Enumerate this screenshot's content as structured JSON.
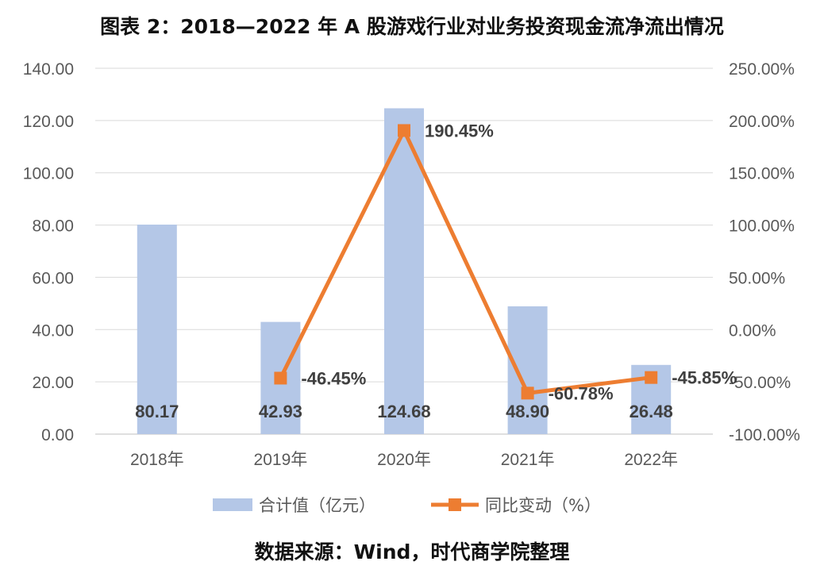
{
  "title": "图表 2：2018—2022 年 A 股游戏行业对业务投资现金流净流出情况",
  "source": "数据来源：Wind，时代商学院整理",
  "chart_data": {
    "type": "bar",
    "categories": [
      "2018年",
      "2019年",
      "2020年",
      "2021年",
      "2022年"
    ],
    "series": [
      {
        "name": "合计值（亿元）",
        "type": "bar",
        "axis": "left",
        "color": "#b4c7e7",
        "values": [
          80.17,
          42.93,
          124.68,
          48.9,
          26.48
        ],
        "labels": [
          "80.17",
          "42.93",
          "124.68",
          "48.90",
          "26.48"
        ]
      },
      {
        "name": "同比变动（%）",
        "type": "line",
        "axis": "right",
        "color": "#ed7d31",
        "values": [
          null,
          -46.45,
          190.45,
          -60.78,
          -45.85
        ],
        "labels": [
          "",
          "-46.45%",
          "190.45%",
          "-60.78%",
          "-45.85%"
        ]
      }
    ],
    "y_left": {
      "range": [
        0,
        140
      ],
      "ticks": [
        0,
        20,
        40,
        60,
        80,
        100,
        120,
        140
      ],
      "tick_labels": [
        "0.00",
        "20.00",
        "40.00",
        "60.00",
        "80.00",
        "100.00",
        "120.00",
        "140.00"
      ]
    },
    "y_right": {
      "range": [
        -100,
        250
      ],
      "ticks": [
        -100,
        -50,
        0,
        50,
        100,
        150,
        200,
        250
      ],
      "tick_labels": [
        "-100.00%",
        "-50.00%",
        "0.00%",
        "50.00%",
        "100.00%",
        "150.00%",
        "200.00%",
        "250.00%"
      ]
    },
    "grid": true,
    "legend": "bottom"
  }
}
